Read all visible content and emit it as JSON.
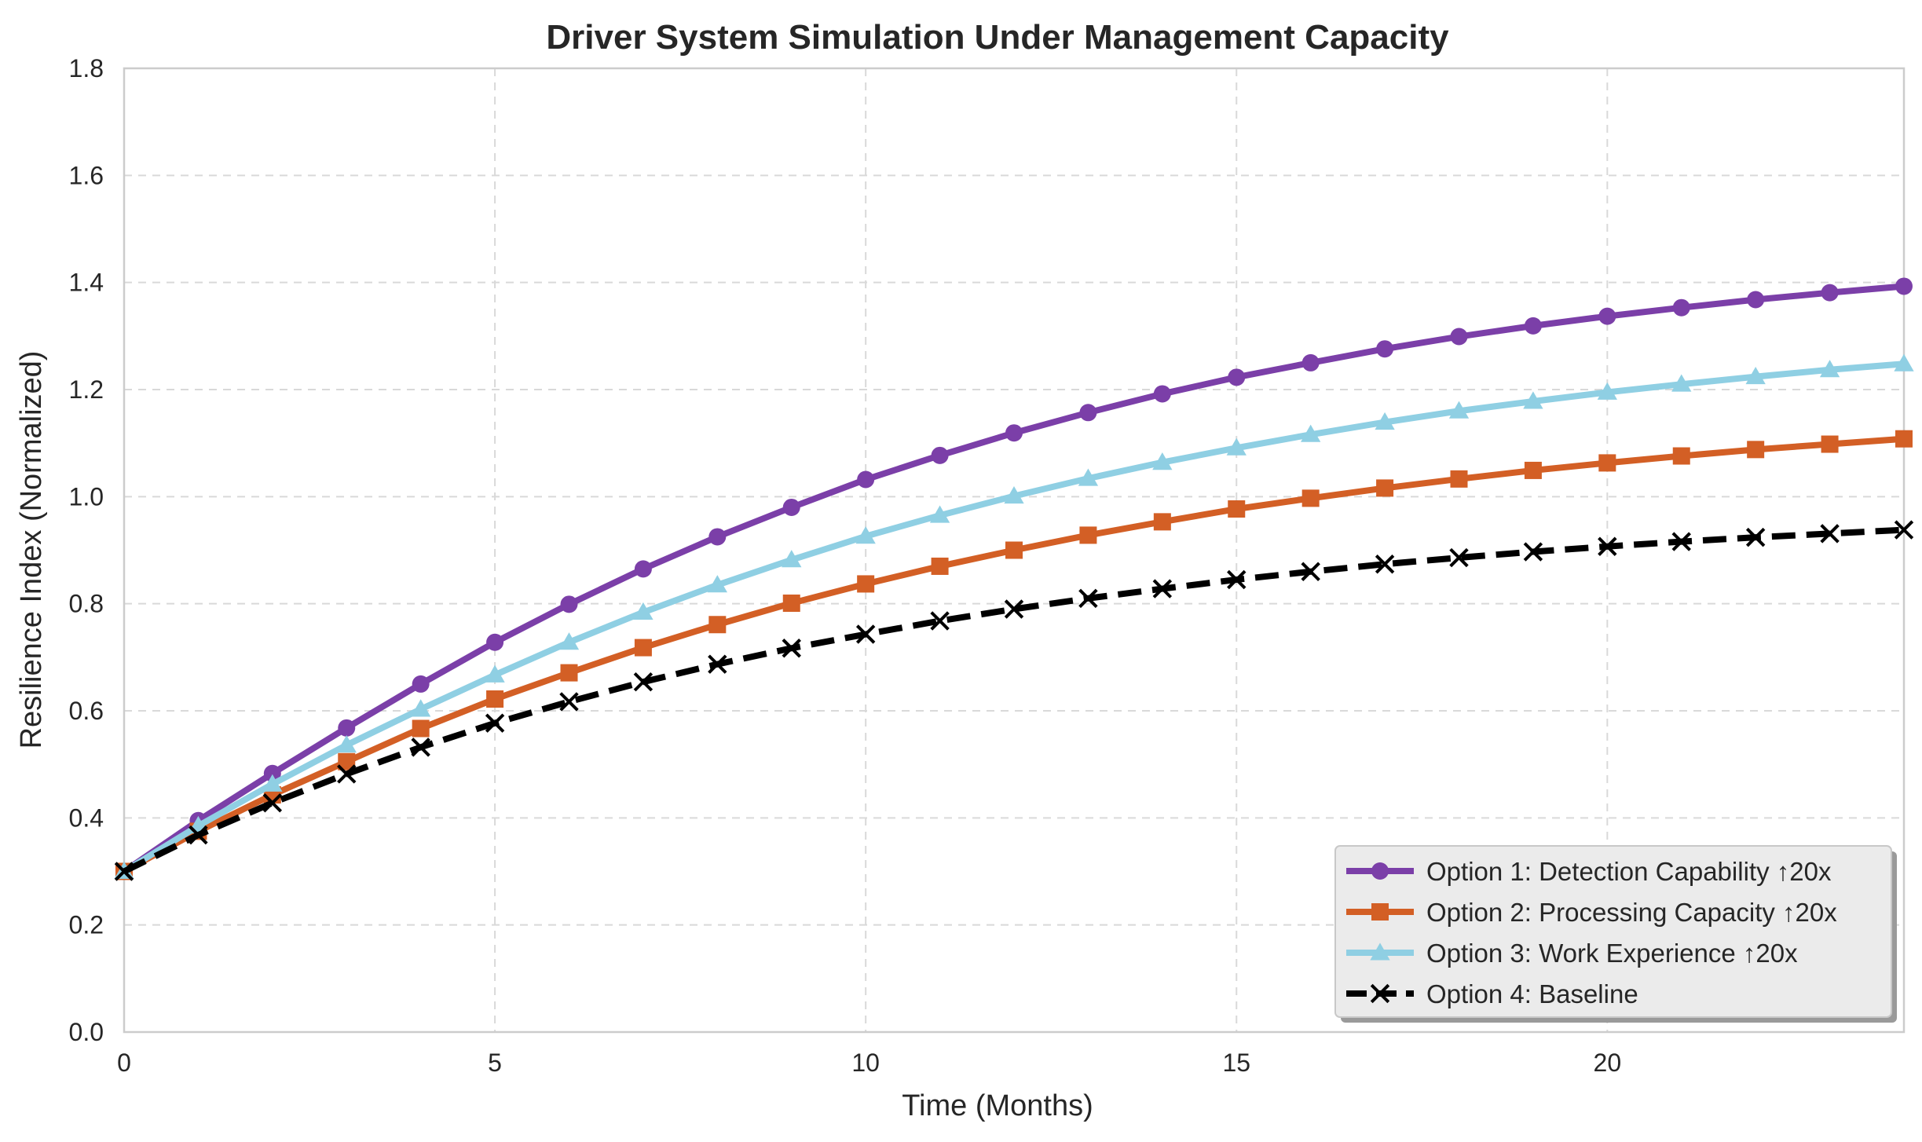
{
  "chart_data": {
    "type": "line",
    "title": "Driver System Simulation Under Management Capacity",
    "xlabel": "Time (Months)",
    "ylabel": "Resilience Index (Normalized)",
    "xlim": [
      0,
      24
    ],
    "ylim": [
      0.0,
      1.8
    ],
    "xticks": [
      0,
      5,
      10,
      15,
      20
    ],
    "xtick_labels": [
      "0",
      "5",
      "10",
      "15",
      "20"
    ],
    "yticks": [
      0.0,
      0.2,
      0.4,
      0.6,
      0.8,
      1.0,
      1.2,
      1.4,
      1.6,
      1.8
    ],
    "ytick_labels": [
      "0.0",
      "0.2",
      "0.4",
      "0.6",
      "0.8",
      "1.0",
      "1.2",
      "1.4",
      "1.6",
      "1.8"
    ],
    "grid": true,
    "legend_position": "bottom-right",
    "x": [
      0,
      1,
      2,
      3,
      4,
      5,
      6,
      7,
      8,
      9,
      10,
      11,
      12,
      13,
      14,
      15,
      16,
      17,
      18,
      19,
      20,
      21,
      22,
      23,
      24
    ],
    "series": [
      {
        "name": "Option 1: Detection Capability ↑20x",
        "color": "#7b3fa8",
        "marker": "circle",
        "dash": false,
        "values": [
          0.3,
          0.395,
          0.483,
          0.568,
          0.65,
          0.728,
          0.799,
          0.865,
          0.925,
          0.98,
          1.032,
          1.077,
          1.119,
          1.157,
          1.192,
          1.223,
          1.25,
          1.276,
          1.299,
          1.319,
          1.337,
          1.353,
          1.368,
          1.381,
          1.393
        ]
      },
      {
        "name": "Option 2: Processing Capacity ↑20x",
        "color": "#d35f25",
        "marker": "square",
        "dash": false,
        "values": [
          0.3,
          0.375,
          0.443,
          0.505,
          0.567,
          0.622,
          0.671,
          0.718,
          0.761,
          0.801,
          0.837,
          0.87,
          0.9,
          0.928,
          0.953,
          0.977,
          0.997,
          1.016,
          1.033,
          1.049,
          1.063,
          1.076,
          1.088,
          1.098,
          1.108
        ]
      },
      {
        "name": "Option 3: Work Experience ↑20x",
        "color": "#8fcfe3",
        "marker": "triangle",
        "dash": false,
        "values": [
          0.3,
          0.385,
          0.463,
          0.536,
          0.603,
          0.667,
          0.728,
          0.784,
          0.835,
          0.882,
          0.926,
          0.965,
          1.001,
          1.034,
          1.064,
          1.091,
          1.116,
          1.139,
          1.16,
          1.178,
          1.195,
          1.21,
          1.224,
          1.237,
          1.248
        ]
      },
      {
        "name": "Option 4: Baseline",
        "color": "#000000",
        "marker": "x",
        "dash": true,
        "values": [
          0.3,
          0.368,
          0.428,
          0.482,
          0.532,
          0.577,
          0.617,
          0.654,
          0.687,
          0.717,
          0.743,
          0.768,
          0.79,
          0.81,
          0.828,
          0.845,
          0.86,
          0.874,
          0.886,
          0.897,
          0.907,
          0.916,
          0.924,
          0.931,
          0.938
        ]
      }
    ]
  }
}
